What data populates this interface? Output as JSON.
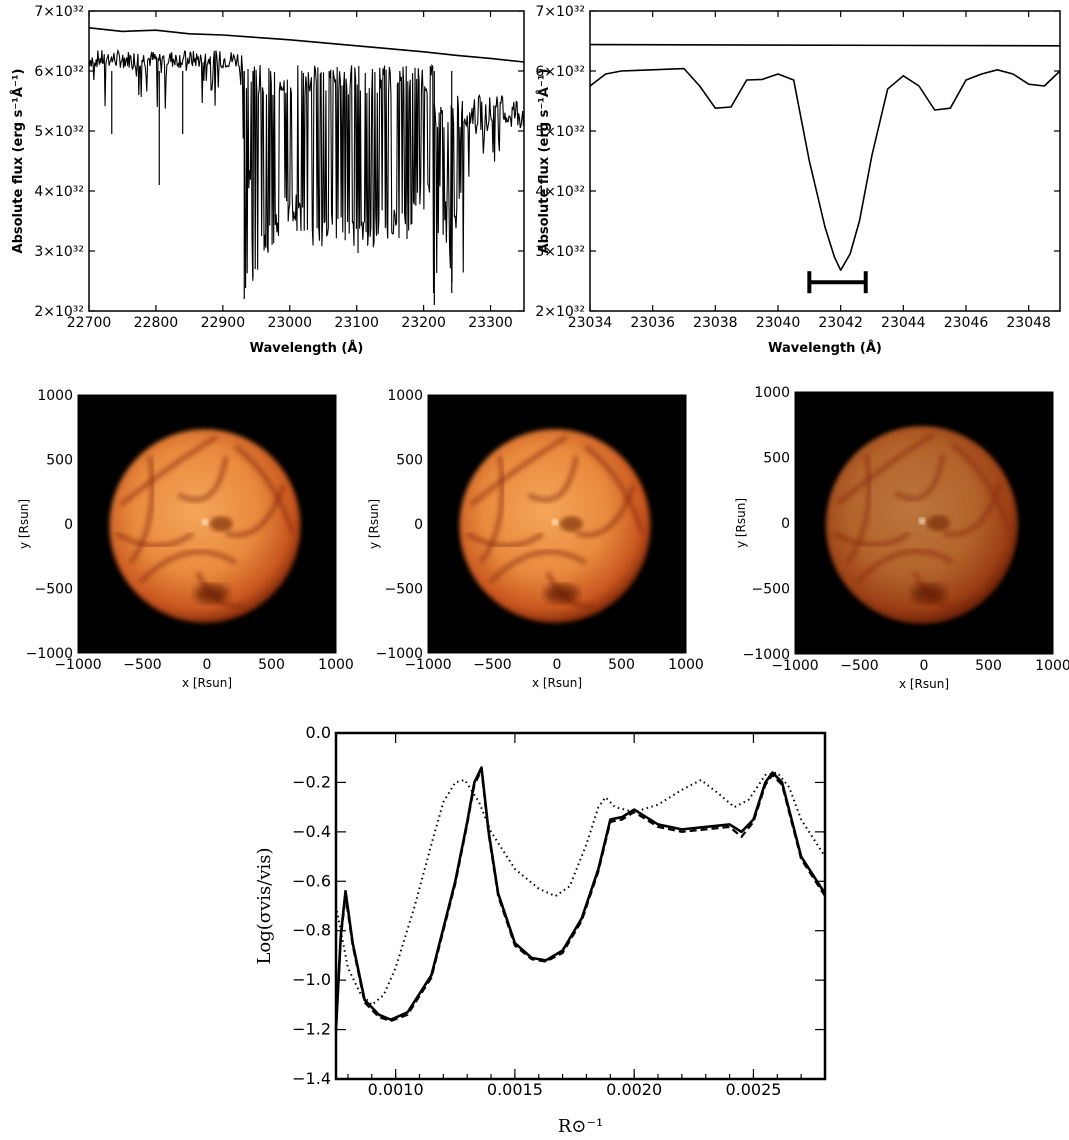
{
  "chart_data": [
    {
      "type": "line",
      "xlabel": "Wavelength (Å)",
      "ylabel": "Absolute flux (erg s⁻¹Å⁻¹)",
      "xlim": [
        22700,
        23350
      ],
      "ylim": [
        2e+32,
        7e+32
      ],
      "xticks": [
        "22700",
        "22800",
        "22900",
        "23000",
        "23100",
        "23200",
        "23300"
      ],
      "yticks": [
        "2×10³²",
        "3×10³²",
        "4×10³²",
        "5×10³²",
        "6×10³²",
        "7×10³²"
      ],
      "series": [
        {
          "x": [
            22700,
            22750,
            22800,
            22850,
            22900,
            22950,
            23000,
            23050,
            23100,
            23150,
            23200,
            23250,
            23300,
            23350
          ],
          "y": [
            6.72e+32,
            6.66e+32,
            6.68e+32,
            6.62e+32,
            6.6e+32,
            6.56e+32,
            6.52e+32,
            6.47e+32,
            6.42e+32,
            6.37e+32,
            6.32e+32,
            6.26e+32,
            6.21e+32,
            6.15e+32
          ]
        },
        {
          "x": [
            22700,
            22705,
            22710,
            22720,
            22730,
            22735,
            22740,
            22760,
            22780,
            22800,
            22805,
            22810,
            22830,
            22840,
            22850,
            22860,
            22880,
            22900,
            22920,
            22928,
            22930,
            22935,
            22940,
            22945,
            22960,
            22980,
            23000,
            23030,
            23060,
            23100,
            23140,
            23180,
            23210,
            23215,
            23220,
            23240,
            23260,
            23280,
            23300,
            23320,
            23340,
            23350
          ],
          "y": [
            6.1e+32,
            5.8e+32,
            6.2e+32,
            6.3e+32,
            5.9e+32,
            4.95e+32,
            6.1e+32,
            6e+32,
            6.2e+32,
            5.7e+32,
            4.1e+32,
            6.1e+32,
            6e+32,
            4.95e+32,
            6.1e+32,
            5.9e+32,
            6e+32,
            6.2e+32,
            5.5e+32,
            6e+32,
            4.9e+32,
            2.2e+32,
            4.5e+32,
            2.6e+32,
            3.2e+32,
            3.6e+32,
            3.9e+32,
            3.4e+32,
            3.5e+32,
            3.3e+32,
            3.5e+32,
            3.6e+32,
            4.3e+32,
            2.1e+32,
            4.8e+32,
            2.3e+32,
            4e+32,
            4.5e+32,
            4.6e+32,
            5e+32,
            4.8e+32,
            5.4e+32
          ]
        }
      ]
    },
    {
      "type": "line",
      "xlabel": "Wavelength (Å)",
      "ylabel": "Absolute flux (erg s⁻¹Å⁻¹)",
      "xlim": [
        23034,
        23049
      ],
      "ylim": [
        2e+32,
        7e+32
      ],
      "xticks": [
        "23034",
        "23036",
        "23038",
        "23040",
        "23042",
        "23044",
        "23046",
        "23048"
      ],
      "yticks": [
        "2×10³²",
        "3×10³²",
        "4×10³²",
        "5×10³²",
        "6×10³²",
        "7×10³²"
      ],
      "series": [
        {
          "x": [
            23034,
            23049
          ],
          "y": [
            6.44e+32,
            6.42e+32
          ]
        },
        {
          "x": [
            23034,
            23034.5,
            23035,
            23036,
            23037,
            23037.5,
            23038,
            23038.5,
            23039,
            23039.5,
            23040,
            23040.5,
            23041,
            23041.5,
            23041.8,
            23042,
            23042.3,
            23042.6,
            23043,
            23043.5,
            23044,
            23044.5,
            23045,
            23045.5,
            23046,
            23046.5,
            23047,
            23047.5,
            23048,
            23048.5,
            23049
          ],
          "y": [
            5.75e+32,
            5.95e+32,
            6e+32,
            6.02e+32,
            6.04e+32,
            5.75e+32,
            5.38e+32,
            5.4e+32,
            5.85e+32,
            5.86e+32,
            5.95e+32,
            5.85e+32,
            4.5e+32,
            3.4e+32,
            2.9e+32,
            2.68e+32,
            2.95e+32,
            3.5e+32,
            4.6e+32,
            5.7e+32,
            5.92e+32,
            5.75e+32,
            5.35e+32,
            5.38e+32,
            5.85e+32,
            5.95e+32,
            6.02e+32,
            5.95e+32,
            5.78e+32,
            5.75e+32,
            6e+32
          ]
        }
      ],
      "annotations": [
        {
          "type": "errorbar",
          "x": [
            23041,
            23042.8
          ],
          "y": 2.48e+32
        }
      ]
    },
    {
      "type": "heatmap",
      "xlabel": "x [Rsun]",
      "ylabel": "y [Rsun]",
      "xlim": [
        -1000,
        1000
      ],
      "ylim": [
        -1000,
        1000
      ],
      "xticks": [
        "−1000",
        "−500",
        "0",
        "500",
        "1000"
      ],
      "yticks": [
        "1000",
        "500",
        "0",
        "−500",
        "−1000"
      ],
      "brightness": 1.0
    },
    {
      "type": "heatmap",
      "xlabel": "x [Rsun]",
      "ylabel": "y [Rsun]",
      "xlim": [
        -1000,
        1000
      ],
      "ylim": [
        -1000,
        1000
      ],
      "xticks": [
        "−1000",
        "−500",
        "0",
        "500",
        "1000"
      ],
      "yticks": [
        "1000",
        "500",
        "0",
        "−500",
        "−1000"
      ],
      "brightness": 1.0
    },
    {
      "type": "heatmap",
      "xlabel": "x [Rsun]",
      "ylabel": "y [Rsun]",
      "xlim": [
        -1000,
        1000
      ],
      "ylim": [
        -1000,
        1000
      ],
      "xticks": [
        "−1000",
        "−500",
        "0",
        "500",
        "1000"
      ],
      "yticks": [
        "1000",
        "500",
        "0",
        "−500",
        "−1000"
      ],
      "brightness": 0.75
    },
    {
      "type": "line",
      "xlabel": "R⊙⁻¹",
      "ylabel": "Log(σvis/vis)",
      "xlim": [
        0.00075,
        0.0028
      ],
      "ylim": [
        -1.4,
        0.0
      ],
      "xticks": [
        "0.0010",
        "0.0015",
        "0.0020",
        "0.0025"
      ],
      "yticks": [
        "0.0",
        "−0.2",
        "−0.4",
        "−0.6",
        "−0.8",
        "−1.0",
        "−1.2",
        "−1.4"
      ],
      "series": [
        {
          "style": "solid",
          "x": [
            0.00075,
            0.00077,
            0.00079,
            0.00082,
            0.00087,
            0.00093,
            0.00098,
            0.00105,
            0.00115,
            0.00125,
            0.0013,
            0.00133,
            0.00136,
            0.00139,
            0.00143,
            0.0015,
            0.00157,
            0.00163,
            0.0017,
            0.00178,
            0.00185,
            0.0019,
            0.00195,
            0.002,
            0.0021,
            0.0022,
            0.0023,
            0.0024,
            0.00245,
            0.0025,
            0.00255,
            0.00258,
            0.00262,
            0.0027,
            0.0028
          ],
          "y": [
            -1.2,
            -0.82,
            -0.64,
            -0.85,
            -1.08,
            -1.14,
            -1.16,
            -1.13,
            -0.98,
            -0.6,
            -0.36,
            -0.2,
            -0.14,
            -0.4,
            -0.65,
            -0.85,
            -0.91,
            -0.92,
            -0.88,
            -0.75,
            -0.55,
            -0.35,
            -0.34,
            -0.31,
            -0.37,
            -0.39,
            -0.38,
            -0.37,
            -0.4,
            -0.35,
            -0.2,
            -0.16,
            -0.2,
            -0.5,
            -0.65
          ]
        },
        {
          "style": "dashed",
          "x": [
            0.00075,
            0.00077,
            0.00079,
            0.00082,
            0.00087,
            0.00093,
            0.00098,
            0.00105,
            0.00115,
            0.00125,
            0.0013,
            0.00133,
            0.00136,
            0.00139,
            0.00143,
            0.0015,
            0.00157,
            0.00163,
            0.0017,
            0.00178,
            0.00185,
            0.0019,
            0.00195,
            0.002,
            0.0021,
            0.0022,
            0.0023,
            0.0024,
            0.00245,
            0.0025,
            0.00255,
            0.00258,
            0.00262,
            0.0027,
            0.0028
          ],
          "y": [
            -1.2,
            -0.83,
            -0.66,
            -0.86,
            -1.09,
            -1.15,
            -1.165,
            -1.14,
            -0.99,
            -0.61,
            -0.37,
            -0.21,
            -0.15,
            -0.41,
            -0.66,
            -0.86,
            -0.915,
            -0.925,
            -0.89,
            -0.76,
            -0.56,
            -0.36,
            -0.35,
            -0.32,
            -0.38,
            -0.4,
            -0.39,
            -0.38,
            -0.42,
            -0.36,
            -0.21,
            -0.17,
            -0.21,
            -0.51,
            -0.66
          ]
        },
        {
          "style": "dotted",
          "x": [
            0.00075,
            0.00078,
            0.0008,
            0.00085,
            0.0009,
            0.00095,
            0.001,
            0.00108,
            0.00115,
            0.0012,
            0.00125,
            0.00129,
            0.00135,
            0.0014,
            0.0015,
            0.0016,
            0.00167,
            0.00173,
            0.0018,
            0.00185,
            0.00188,
            0.00192,
            0.002,
            0.0021,
            0.0022,
            0.00228,
            0.00236,
            0.00242,
            0.00248,
            0.00255,
            0.0026,
            0.00265,
            0.0027,
            0.0028
          ],
          "y": [
            -0.7,
            -0.85,
            -0.95,
            -1.05,
            -1.1,
            -1.06,
            -0.95,
            -0.7,
            -0.45,
            -0.28,
            -0.2,
            -0.19,
            -0.28,
            -0.4,
            -0.55,
            -0.63,
            -0.66,
            -0.62,
            -0.45,
            -0.3,
            -0.26,
            -0.3,
            -0.32,
            -0.29,
            -0.23,
            -0.19,
            -0.25,
            -0.3,
            -0.27,
            -0.17,
            -0.16,
            -0.22,
            -0.35,
            -0.5
          ]
        }
      ]
    }
  ]
}
